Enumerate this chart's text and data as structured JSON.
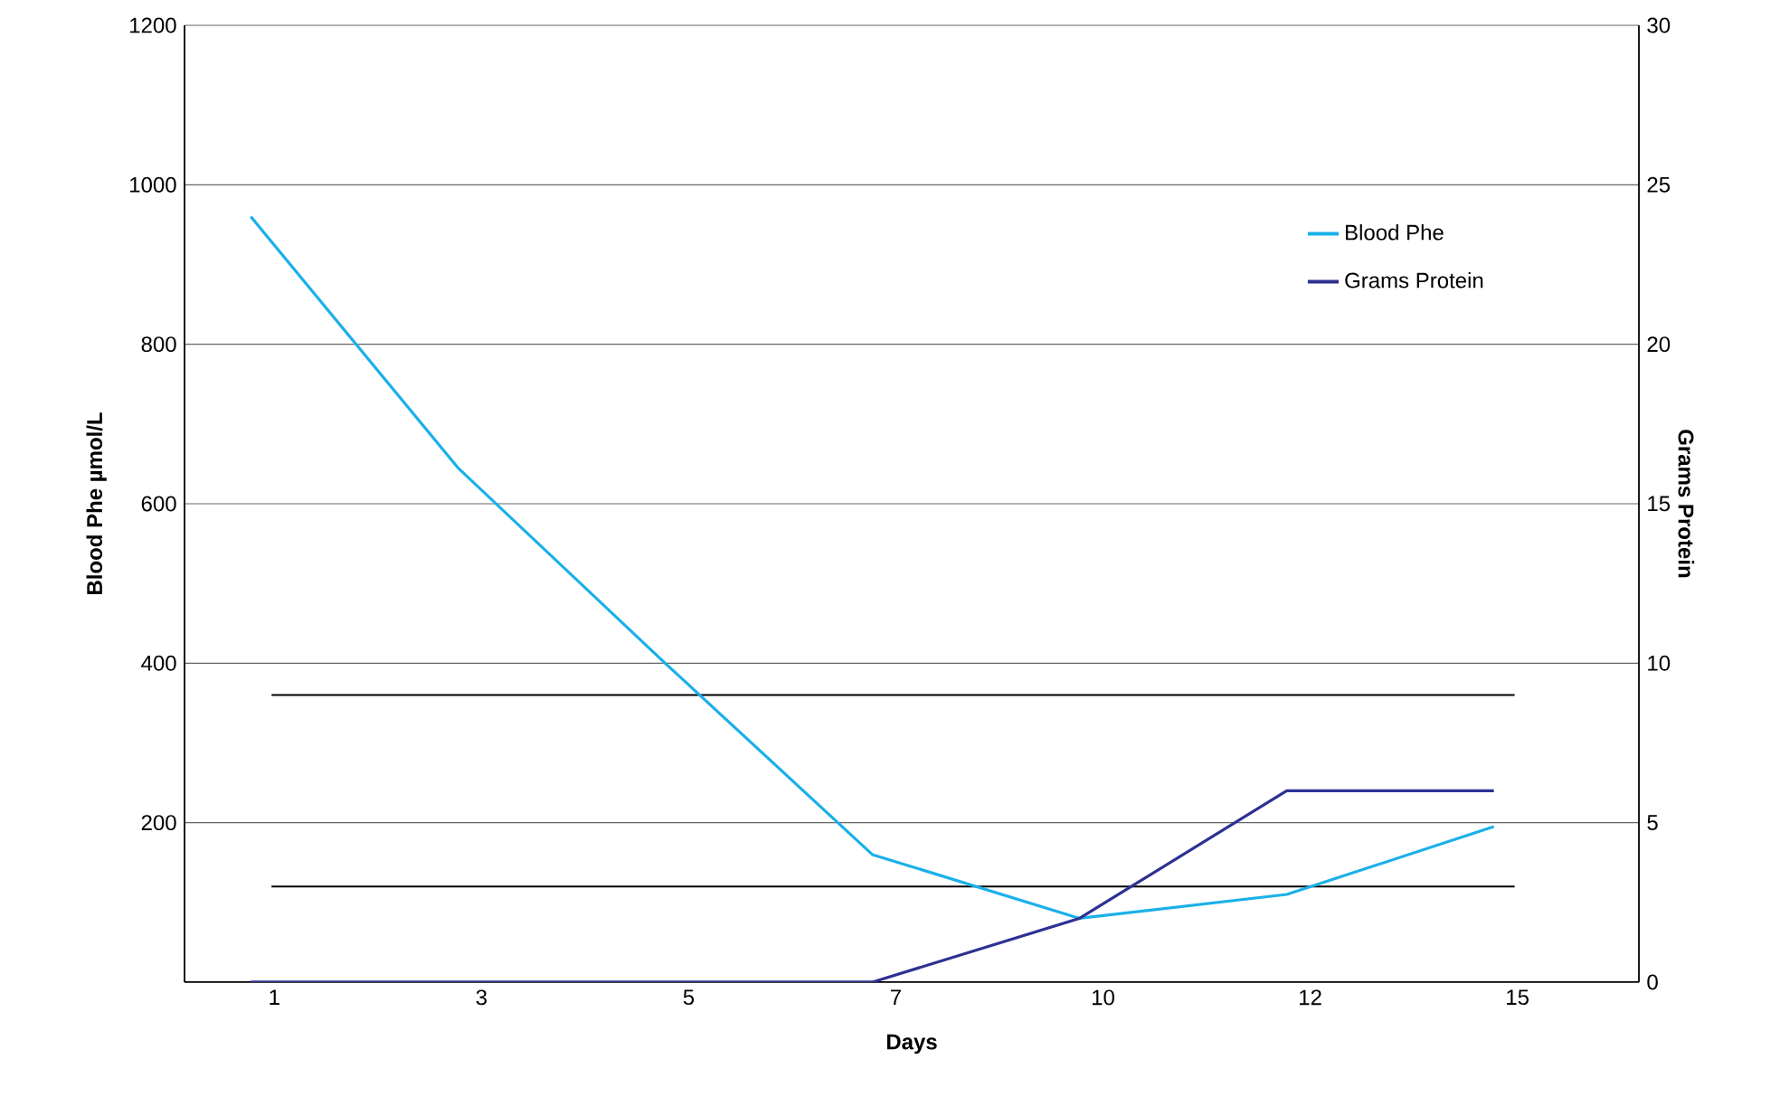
{
  "chart_data": {
    "type": "line",
    "xlabel": "Days",
    "ylabel": "**Blood Phe µmol/L**",
    "y2label": "Grams  Protein",
    "categories": [
      "1",
      "3",
      "5",
      "7",
      "10",
      "12",
      "15"
    ],
    "series": [
      {
        "name": "Blood Phe",
        "color": "#1ab0e8",
        "values": [
          960,
          645,
          400,
          160,
          80,
          110,
          195
        ]
      },
      {
        "name": "Grams Protein",
        "color": "#2e3192",
        "axis": "y2",
        "values": [
          0,
          0,
          0,
          0,
          2,
          6,
          6
        ]
      }
    ],
    "ylim": [
      0,
      1200
    ],
    "yticks": [
      200,
      400,
      600,
      800,
      1000,
      1200
    ],
    "y2lim": [
      0,
      30
    ],
    "y2ticks": [
      0,
      5,
      10,
      15,
      20,
      25,
      30
    ],
    "ref_lines": [
      {
        "axis": "y",
        "value": 360,
        "color": "#000000"
      },
      {
        "axis": "y",
        "value": 120,
        "color": "#000000"
      }
    ],
    "grid": "y",
    "legend": "top right",
    "line_style": "solid",
    "marker": "none"
  }
}
